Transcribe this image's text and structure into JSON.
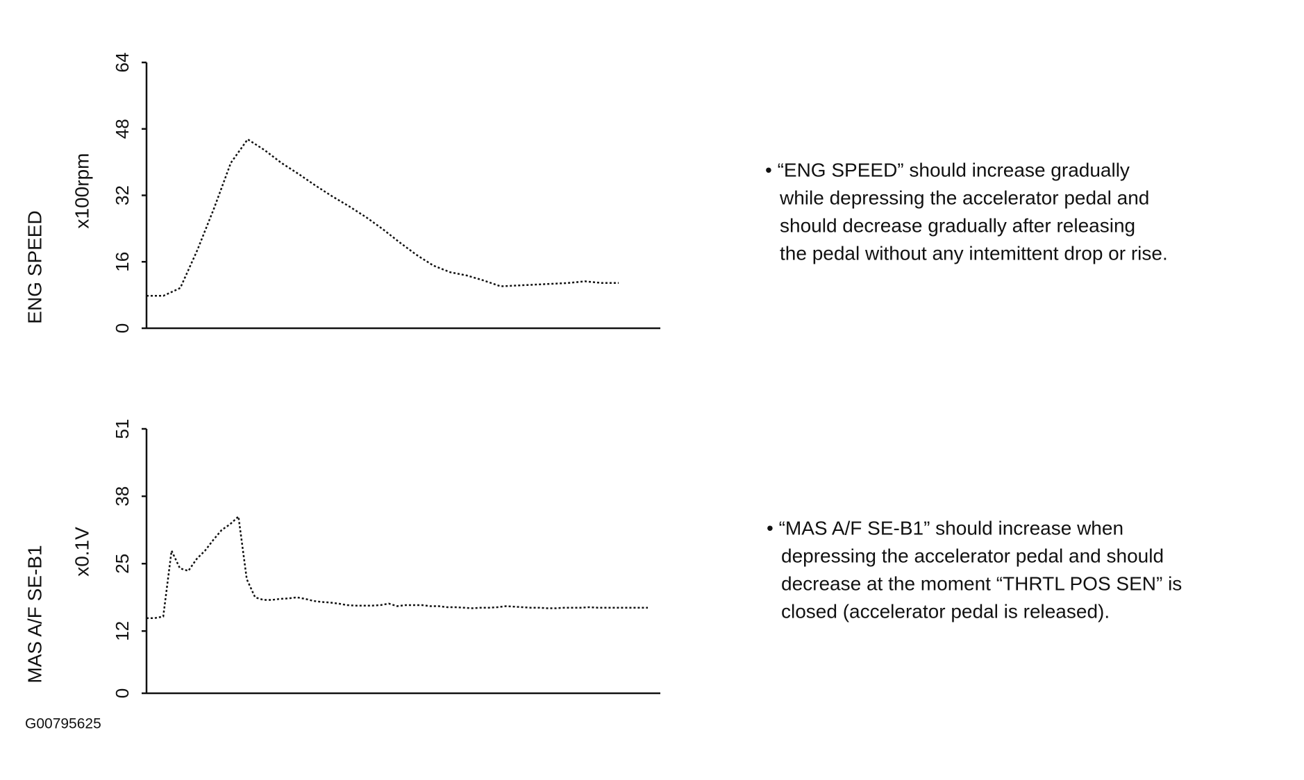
{
  "chart_data": [
    {
      "type": "line",
      "ylabel": "ENG SPEED",
      "unit_label": "x100rpm",
      "ylim": [
        0,
        64
      ],
      "yticks": [
        0,
        16,
        32,
        48,
        64
      ],
      "series": [
        {
          "name": "ENG SPEED",
          "color": "#111111",
          "values": [
            7.8,
            7.8,
            9.7,
            18.7,
            28.8,
            39.8,
            45.5,
            42.9,
            39.8,
            37.2,
            34.4,
            31.8,
            29.4,
            26.8,
            23.9,
            20.7,
            17.7,
            15.1,
            13.5,
            12.7,
            11.5,
            10.1,
            10.3,
            10.5,
            10.7,
            10.9,
            11.3,
            10.9,
            10.9
          ]
        }
      ],
      "annotation": [
        "• “ENG SPEED” should increase gradually",
        "while depressing the accelerator pedal and",
        "should decrease gradually after releasing",
        "the pedal without any intemittent drop or rise."
      ]
    },
    {
      "type": "line",
      "ylabel": "MAS A/F SE-B1",
      "unit_label": "x0.1V",
      "ylim": [
        0,
        51
      ],
      "yticks": [
        0,
        12,
        25,
        38,
        51
      ],
      "series": [
        {
          "name": "MAS A/F SE-B1",
          "color": "#111111",
          "values": [
            14.5,
            14.5,
            14.8,
            27.5,
            24.1,
            23.6,
            25.9,
            27.5,
            29.6,
            31.5,
            32.6,
            34.1,
            22,
            18.5,
            18,
            18,
            18.2,
            18.3,
            18.5,
            18.2,
            17.8,
            17.6,
            17.5,
            17.3,
            17.0,
            16.9,
            16.9,
            16.9,
            17.0,
            17.3,
            16.8,
            17.0,
            17.0,
            17.0,
            16.8,
            16.8,
            16.6,
            16.6,
            16.5,
            16.4,
            16.5,
            16.5,
            16.6,
            16.8,
            16.7,
            16.6,
            16.5,
            16.5,
            16.4,
            16.4,
            16.5,
            16.5,
            16.5,
            16.6,
            16.5,
            16.5,
            16.5,
            16.5,
            16.5,
            16.5,
            16.5
          ]
        }
      ],
      "annotation": [
        "• “MAS A/F SE-B1” should increase when",
        "depressing the accelerator pedal and  should",
        "decrease at the moment “THRTL POS SEN” is",
        "closed (accelerator pedal is released)."
      ]
    }
  ],
  "figure_id": "G00795625"
}
